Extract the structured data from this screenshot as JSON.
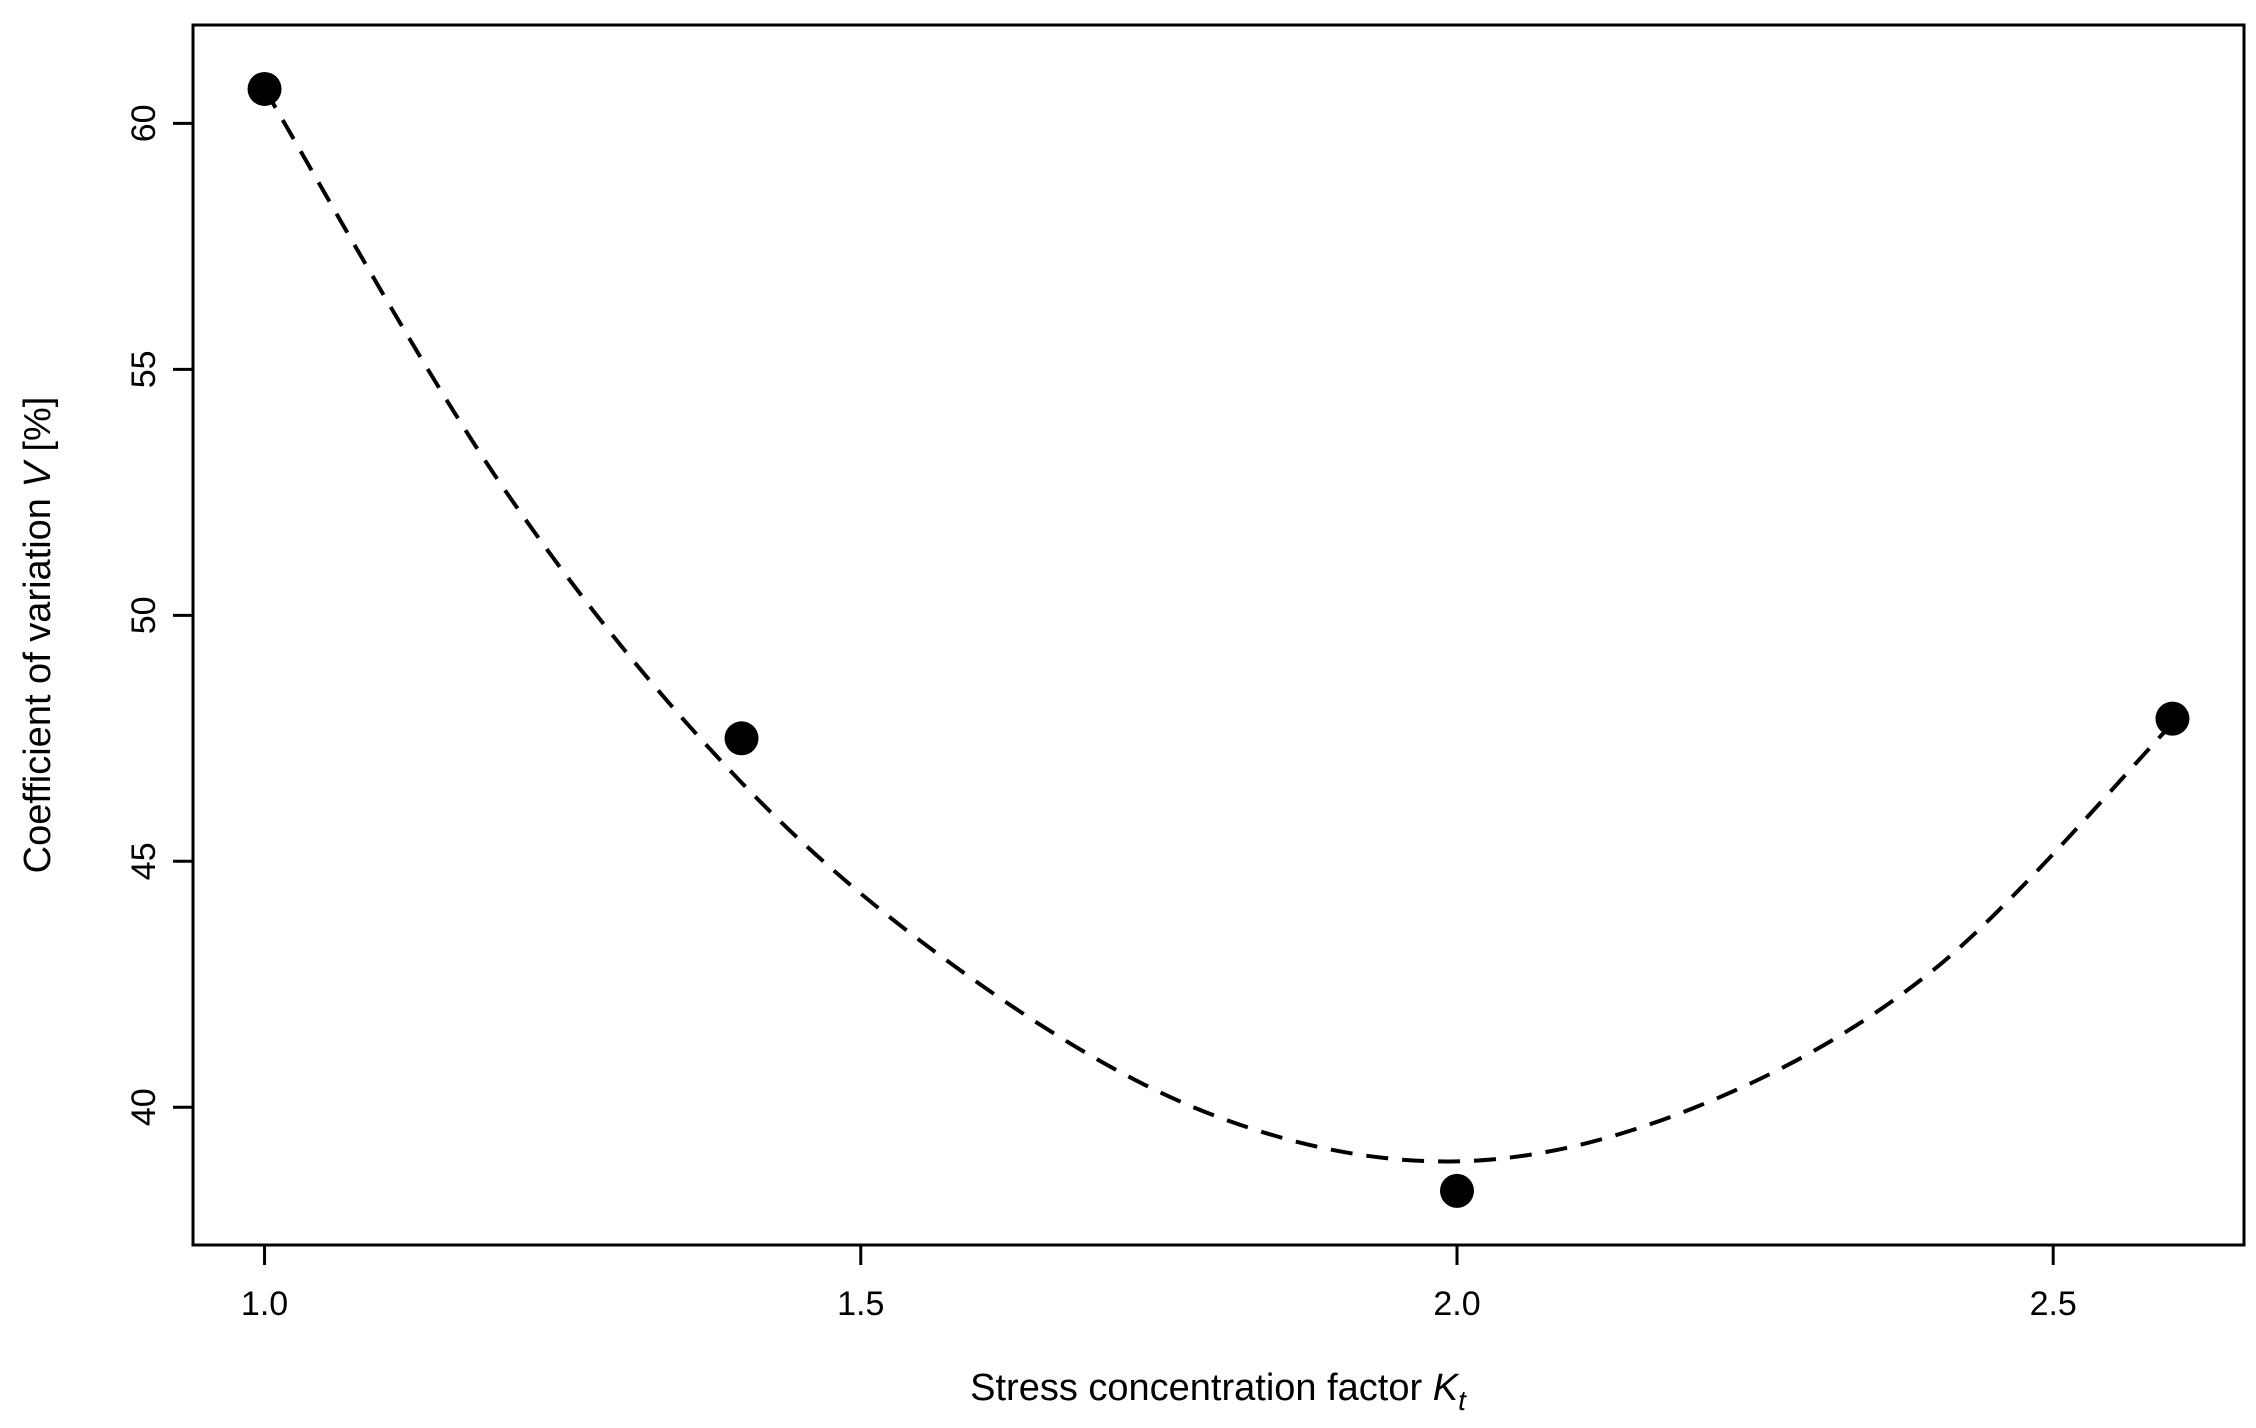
{
  "chart_data": {
    "type": "scatter",
    "xlabel": "Stress concentration factor",
    "xlabel_symbol": "K",
    "xlabel_subscript": "t",
    "ylabel_prefix": "Coefficient of variation",
    "ylabel_symbol": "V",
    "ylabel_suffix": "[%]",
    "xlim": [
      0.94,
      2.66
    ],
    "ylim": [
      37.2,
      62.0
    ],
    "x_ticks": [
      1.0,
      1.5,
      2.0,
      2.5
    ],
    "x_tick_labels": [
      "1.0",
      "1.5",
      "2.0",
      "2.5"
    ],
    "y_ticks": [
      40,
      45,
      50,
      55,
      60
    ],
    "y_tick_labels": [
      "40",
      "45",
      "50",
      "55",
      "60"
    ],
    "grid": false,
    "points": [
      {
        "x": 1.0,
        "y": 60.7
      },
      {
        "x": 1.4,
        "y": 47.5
      },
      {
        "x": 2.0,
        "y": 38.3
      },
      {
        "x": 2.6,
        "y": 47.9
      }
    ],
    "fit_line": {
      "style": "dashed",
      "x": [
        1.0,
        1.2,
        1.4,
        1.6,
        1.8,
        2.0,
        2.2,
        2.4,
        2.6
      ],
      "y": [
        60.7,
        52.6,
        46.6,
        42.5,
        39.8,
        38.9,
        40.0,
        42.8,
        47.8
      ]
    },
    "colors": {
      "marker": "#000000",
      "line": "#000000",
      "axis": "#000000"
    }
  }
}
